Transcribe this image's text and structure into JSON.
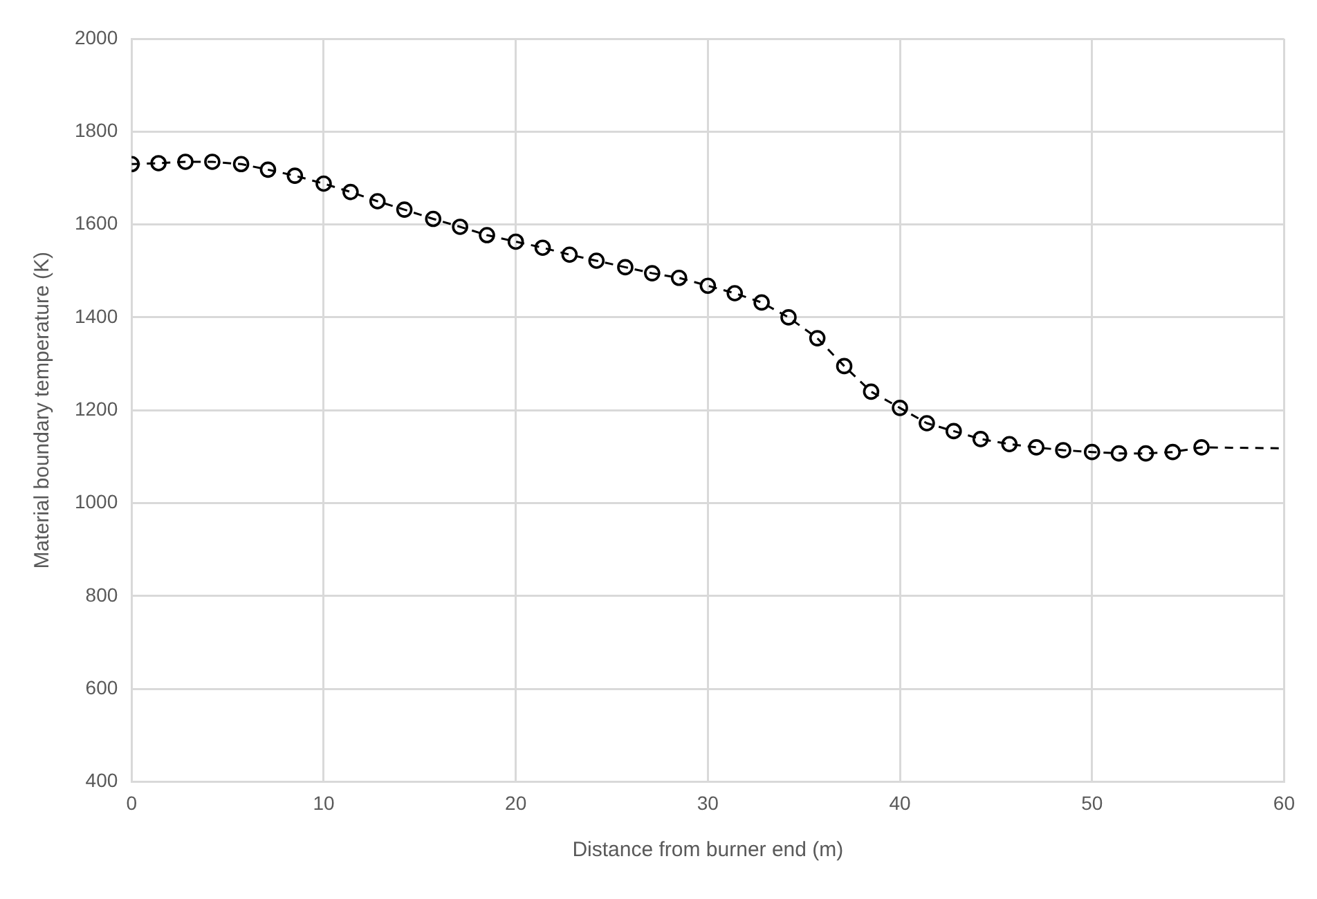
{
  "chart_data": {
    "type": "scatter",
    "xlabel": "Distance from burner end (m)",
    "ylabel": "Material boundary temperature (K)",
    "xlim": [
      0,
      60
    ],
    "xticks": [
      0,
      10,
      20,
      30,
      40,
      50,
      60
    ],
    "ylim": [
      400,
      2000
    ],
    "yticks": [
      400,
      600,
      800,
      1000,
      1200,
      1400,
      1600,
      1800,
      2000
    ],
    "grid": true,
    "legend": false,
    "series": [
      {
        "type": "line",
        "line_style": "dashed",
        "marker": "none",
        "color": "#000000",
        "x": [
          0,
          1.4,
          2.8,
          4.2,
          5.7,
          7.1,
          8.5,
          10,
          11.4,
          12.8,
          14.2,
          15.7,
          17.1,
          18.5,
          20,
          21.4,
          22.8,
          24.2,
          25.7,
          27.1,
          28.5,
          30,
          31.4,
          32.8,
          34.2,
          35.7,
          37.1,
          38.5,
          40,
          41.4,
          42.8,
          44.2,
          45.7,
          47.1,
          48.5,
          50,
          51.4,
          52.8,
          54.2,
          55.7,
          60
        ],
        "values": [
          1730,
          1732,
          1735,
          1735,
          1730,
          1718,
          1705,
          1688,
          1670,
          1650,
          1632,
          1612,
          1595,
          1577,
          1563,
          1550,
          1535,
          1522,
          1508,
          1495,
          1485,
          1468,
          1452,
          1432,
          1400,
          1355,
          1295,
          1240,
          1205,
          1172,
          1155,
          1138,
          1127,
          1120,
          1114,
          1110,
          1107,
          1107,
          1110,
          1120,
          1118
        ]
      },
      {
        "marker": "circle",
        "color": "#000000",
        "x": [
          0,
          1.4,
          2.8,
          4.2,
          5.7,
          7.1,
          8.5,
          10,
          11.4,
          12.8,
          14.2,
          15.7,
          17.1,
          18.5,
          20,
          21.4,
          22.8,
          24.2,
          25.7,
          27.1,
          28.5,
          30,
          31.4,
          32.8,
          34.2,
          35.7,
          37.1,
          38.5,
          40,
          41.4,
          42.8,
          44.2,
          45.7,
          47.1,
          48.5,
          50,
          51.4,
          52.8,
          54.2,
          55.7
        ],
        "values": [
          1730,
          1732,
          1735,
          1735,
          1730,
          1718,
          1705,
          1688,
          1670,
          1650,
          1632,
          1612,
          1595,
          1577,
          1563,
          1550,
          1535,
          1522,
          1508,
          1495,
          1485,
          1468,
          1452,
          1432,
          1400,
          1355,
          1295,
          1240,
          1205,
          1172,
          1155,
          1138,
          1127,
          1120,
          1114,
          1110,
          1107,
          1107,
          1110,
          1120
        ]
      }
    ]
  }
}
